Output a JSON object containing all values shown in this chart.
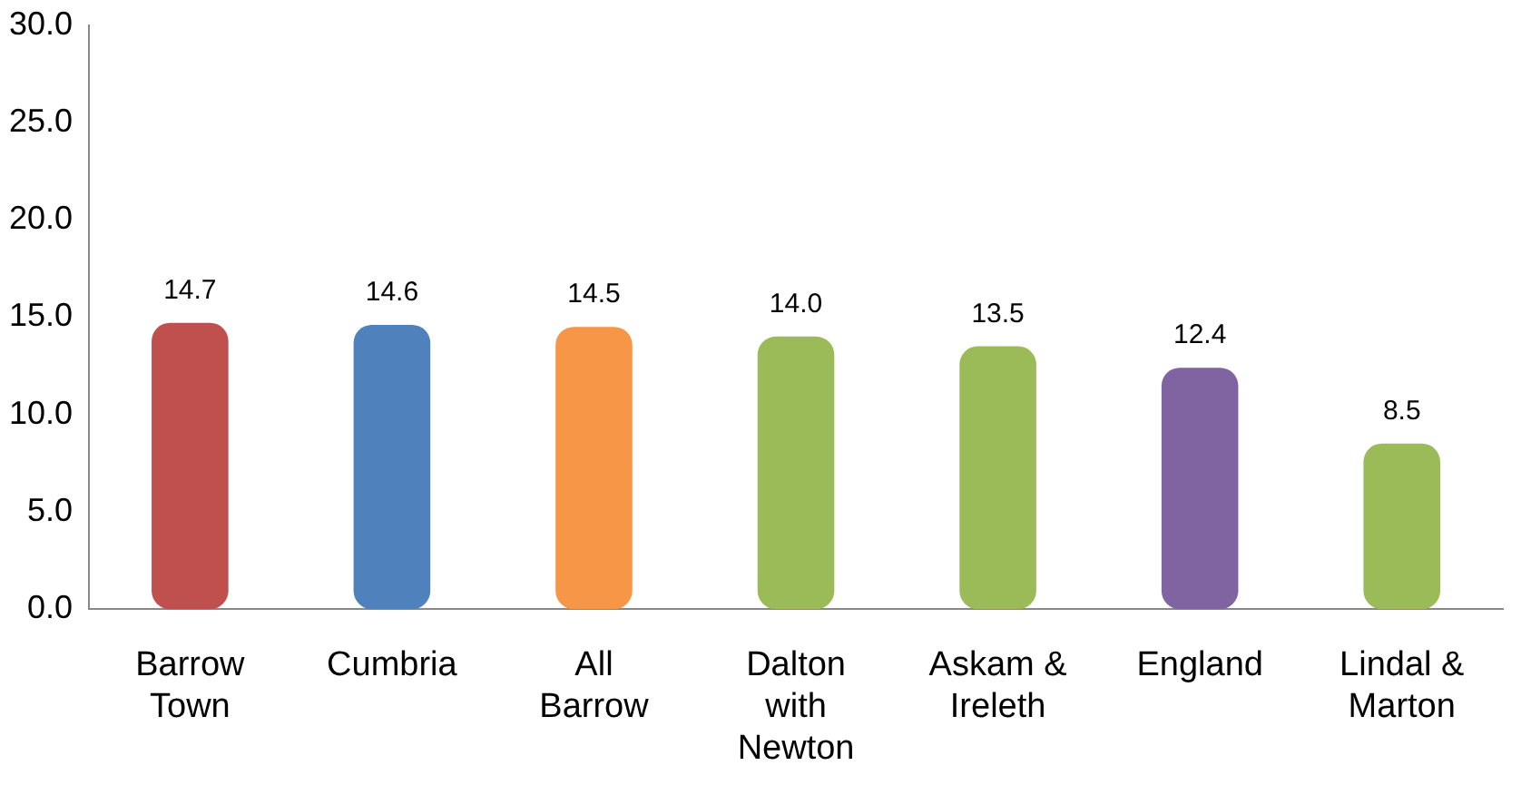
{
  "chart_data": {
    "type": "bar",
    "categories": [
      "Barrow Town",
      "Cumbria",
      "All Barrow",
      "Dalton with Newton",
      "Askam & Ireleth",
      "England",
      "Lindal & Marton"
    ],
    "values": [
      14.7,
      14.6,
      14.5,
      14.0,
      13.5,
      12.4,
      8.5
    ],
    "value_labels": [
      "14.7",
      "14.6",
      "14.5",
      "14.0",
      "13.5",
      "12.4",
      "8.5"
    ],
    "colors": [
      "#c0504d",
      "#4f81bd",
      "#f79646",
      "#9bbb59",
      "#9bbb59",
      "#8064a2",
      "#9bbb59"
    ],
    "ylim": [
      0,
      30
    ],
    "yticks": [
      {
        "value": 0,
        "label": "0.0"
      },
      {
        "value": 5,
        "label": "5.0"
      },
      {
        "value": 10,
        "label": "10.0"
      },
      {
        "value": 15,
        "label": "15.0"
      },
      {
        "value": 20,
        "label": "20.0"
      },
      {
        "value": 25,
        "label": "25.0"
      },
      {
        "value": 30,
        "label": "30.0"
      }
    ],
    "grid": false,
    "legend": false
  }
}
